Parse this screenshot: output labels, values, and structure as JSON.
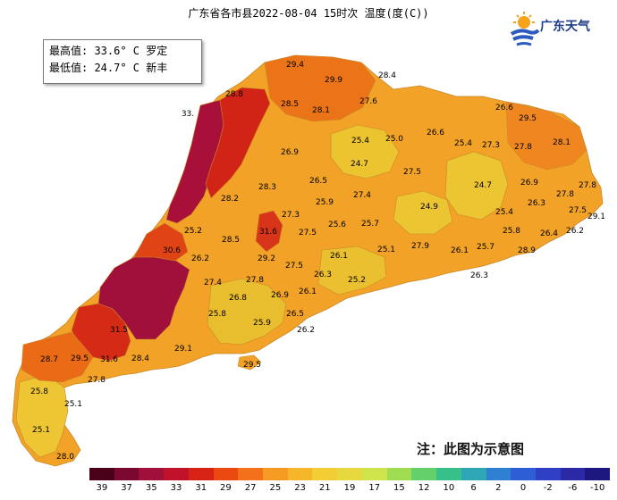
{
  "title": "广东省各市县2022-08-04 15时次 温度(度(C))",
  "info": {
    "max_line": "最高值: 33.6° C 罗定",
    "min_line": "最低值: 24.7° C 新丰"
  },
  "logo_text": "广东天气",
  "note": "注：此图为示意图",
  "legend": {
    "labels": [
      "39",
      "37",
      "35",
      "33",
      "31",
      "29",
      "27",
      "25",
      "23",
      "21",
      "19",
      "17",
      "15",
      "12",
      "10",
      "6",
      "2",
      "0",
      "-2",
      "-6",
      "-10"
    ],
    "colors": [
      "#4a0018",
      "#7a0830",
      "#a0103a",
      "#c0122a",
      "#d92216",
      "#ea4a10",
      "#f2711a",
      "#f59a22",
      "#f6b62a",
      "#f2cd34",
      "#e8d840",
      "#cfe44a",
      "#9fdc52",
      "#63d06a",
      "#38c08a",
      "#2fa6b6",
      "#2f80d2",
      "#2e5ed6",
      "#3040c6",
      "#2a2aa6",
      "#1c1880"
    ]
  },
  "map_values": [
    {
      "label": "29.4",
      "color": "#ea6a14"
    },
    {
      "label": "29.9",
      "color": "#e8601a"
    },
    {
      "label": "28.4",
      "color": "#ef7a1c"
    },
    {
      "label": "28.8",
      "color": "#ec7218"
    },
    {
      "label": "28.5",
      "color": "#ec7418"
    },
    {
      "label": "28.1",
      "color": "#ef7c1c"
    },
    {
      "label": "27.6",
      "color": "#f08820"
    },
    {
      "label": "26.6",
      "color": "#f3a028"
    },
    {
      "label": "29.5",
      "color": "#e65a16"
    },
    {
      "label": "33.",
      "color": "#8a0c32"
    },
    {
      "label": "25.4",
      "color": "#e8be2e"
    },
    {
      "label": "25.0",
      "color": "#ecc432"
    },
    {
      "label": "26.6",
      "color": "#f3a428"
    },
    {
      "label": "25.4",
      "color": "#eabd2e"
    },
    {
      "label": "27.3",
      "color": "#f08c22"
    },
    {
      "label": "27.8",
      "color": "#ef8620"
    },
    {
      "label": "28.1",
      "color": "#ee7c1c"
    },
    {
      "label": "26.9",
      "color": "#f29826"
    },
    {
      "label": "24.7",
      "color": "#eecf36"
    },
    {
      "label": "27.5",
      "color": "#f08a22"
    },
    {
      "label": "26.5",
      "color": "#f3a228"
    },
    {
      "label": "28.2",
      "color": "#ee7c1c"
    },
    {
      "label": "28.3",
      "color": "#ed781a"
    },
    {
      "label": "27.4",
      "color": "#f08c22"
    },
    {
      "label": "24.7",
      "color": "#eecf36"
    },
    {
      "label": "26.9",
      "color": "#f29826"
    },
    {
      "label": "27.8",
      "color": "#ef8620"
    },
    {
      "label": "27.8",
      "color": "#ef8620"
    },
    {
      "label": "25.9",
      "color": "#e9b82c"
    },
    {
      "label": "27.3",
      "color": "#f08c22"
    },
    {
      "label": "24.9",
      "color": "#edca34"
    },
    {
      "label": "26.3",
      "color": "#f3a628"
    },
    {
      "label": "27.5",
      "color": "#f08a22"
    },
    {
      "label": "29.1",
      "color": "#e86418"
    },
    {
      "label": "25.2",
      "color": "#ebc230"
    },
    {
      "label": "28.5",
      "color": "#ec7418"
    },
    {
      "label": "31.6",
      "color": "#d22a18"
    },
    {
      "label": "27.5",
      "color": "#f08a22"
    },
    {
      "label": "25.6",
      "color": "#eabb2e"
    },
    {
      "label": "25.7",
      "color": "#eab92e"
    },
    {
      "label": "25.4",
      "color": "#eabd2e"
    },
    {
      "label": "26.2",
      "color": "#f3a828"
    },
    {
      "label": "30.6",
      "color": "#de3c14"
    },
    {
      "label": "26.2",
      "color": "#f3a828"
    },
    {
      "label": "29.2",
      "color": "#e86418"
    },
    {
      "label": "27.5",
      "color": "#f08a22"
    },
    {
      "label": "26.1",
      "color": "#f3aa28"
    },
    {
      "label": "25.1",
      "color": "#ebc330"
    },
    {
      "label": "27.9",
      "color": "#ef8420"
    },
    {
      "label": "26.1",
      "color": "#f3aa28"
    },
    {
      "label": "25.7",
      "color": "#eab92e"
    },
    {
      "label": "25.8",
      "color": "#e9b82c"
    },
    {
      "label": "26.4",
      "color": "#f3a528"
    },
    {
      "label": "28.9",
      "color": "#ea6c16"
    },
    {
      "label": "27.4",
      "color": "#f08c22"
    },
    {
      "label": "27.8",
      "color": "#ef8620"
    },
    {
      "label": "26.3",
      "color": "#f3a628"
    },
    {
      "label": "25.2",
      "color": "#ebc230"
    },
    {
      "label": "26.3",
      "color": "#f3a628"
    },
    {
      "label": "26.8",
      "color": "#f29a26"
    },
    {
      "label": "26.9",
      "color": "#f29826"
    },
    {
      "label": "26.1",
      "color": "#f3aa28"
    },
    {
      "label": "25.8",
      "color": "#e9b82c"
    },
    {
      "label": "25.9",
      "color": "#e9b82c"
    },
    {
      "label": "26.5",
      "color": "#f3a228"
    },
    {
      "label": "26.2",
      "color": "#f3a828"
    },
    {
      "label": "31.5",
      "color": "#d42a16"
    },
    {
      "label": "29.1",
      "color": "#e86418"
    },
    {
      "label": "28.7",
      "color": "#ec7018"
    },
    {
      "label": "29.5",
      "color": "#e65a16"
    },
    {
      "label": "31.6",
      "color": "#d22a18"
    },
    {
      "label": "28.4",
      "color": "#ed761a"
    },
    {
      "label": "27.8",
      "color": "#ef8620"
    },
    {
      "label": "29.5",
      "color": "#e65a16"
    },
    {
      "label": "25.8",
      "color": "#e9b82c"
    },
    {
      "label": "25.1",
      "color": "#ebc330"
    },
    {
      "label": "25.1",
      "color": "#ebc330"
    },
    {
      "label": "28.0",
      "color": "#ef8020"
    }
  ]
}
